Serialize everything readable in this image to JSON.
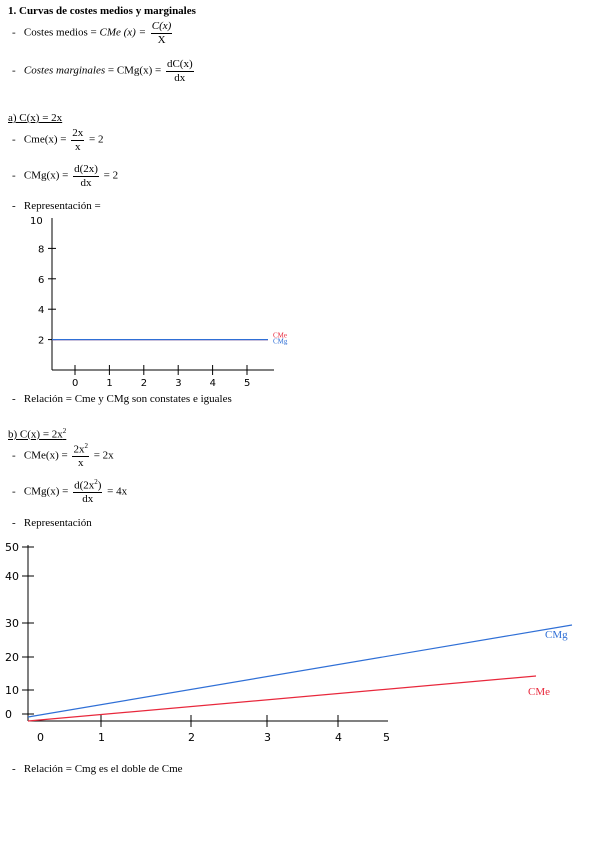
{
  "section": {
    "title": "1. Curvas de costes medios y marginales",
    "avg_label": "Costes medios = ",
    "avg_func": "CMe (x) = ",
    "avg_num": "C(x)",
    "avg_den": "X",
    "marg_label": "Costes marginales",
    "marg_eq": " = CMg(x) = ",
    "marg_num": "dC(x)",
    "marg_den": "dx"
  },
  "part_a": {
    "heading": "a) C(x) = 2x",
    "cme_lhs": "Cme(x) = ",
    "cme_num": "2x",
    "cme_den": "x",
    "cme_rhs": " = 2",
    "cmg_lhs": "CMg(x) = ",
    "cmg_num": "d(2x)",
    "cmg_den": "dx",
    "cmg_rhs": " = 2",
    "rep": "Representación =",
    "relation": "Relación = Cme y CMg son constates e iguales"
  },
  "part_b": {
    "heading": "b) C(x) = 2x",
    "heading_sup": "2",
    "cme_lhs": "CMe(x) = ",
    "cme_num": "2x",
    "cme_num_sup": "2",
    "cme_den": "x",
    "cme_rhs": " = 2x",
    "cmg_lhs": "CMg(x) = ",
    "cmg_num_pre": "d(2x",
    "cmg_num_sup": "2",
    "cmg_num_post": ")",
    "cmg_den": "dx",
    "cmg_rhs": " = 4x",
    "rep": "Representación",
    "relation": "Relación = Cmg es el doble de Cme"
  },
  "bullet": "-",
  "chart_data": [
    {
      "type": "line",
      "x_ticks": [
        "0",
        "1",
        "2",
        "3",
        "4",
        "5"
      ],
      "y_ticks": [
        "2",
        "4",
        "6",
        "8",
        "10"
      ],
      "xlim": [
        0,
        5
      ],
      "ylim": [
        0,
        10
      ],
      "series": [
        {
          "name": "CMe",
          "color": "#e8283c",
          "x": [
            0,
            5
          ],
          "y": [
            2,
            2
          ]
        },
        {
          "name": "CMg",
          "color": "#2f6fd6",
          "x": [
            0,
            5
          ],
          "y": [
            2,
            2
          ]
        }
      ]
    },
    {
      "type": "line",
      "x_ticks": [
        "0",
        "1",
        "2",
        "3",
        "4",
        "5"
      ],
      "y_ticks": [
        "0",
        "10",
        "20",
        "30",
        "40",
        "50"
      ],
      "xlim": [
        0,
        5
      ],
      "ylim": [
        0,
        50
      ],
      "series": [
        {
          "name": "CMg",
          "color": "#2f6fd6",
          "x": [
            0,
            5
          ],
          "y": [
            0,
            20
          ]
        },
        {
          "name": "CMe",
          "color": "#e8283c",
          "x": [
            0,
            5
          ],
          "y": [
            0,
            10
          ]
        }
      ]
    }
  ]
}
